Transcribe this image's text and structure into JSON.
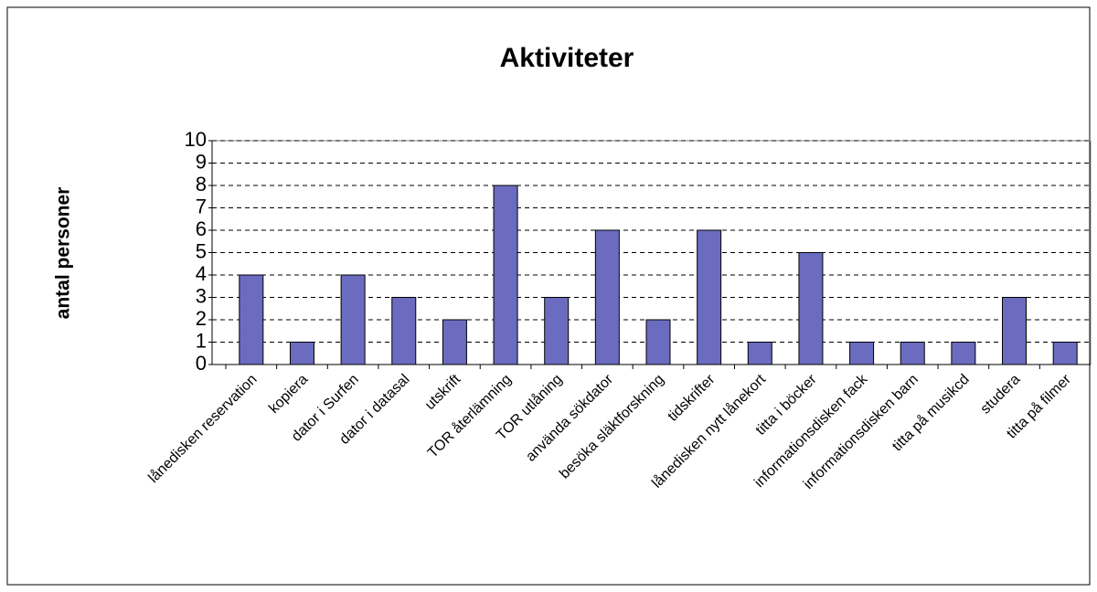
{
  "chart_data": {
    "type": "bar",
    "title": "Aktiviteter",
    "y_label": "antal personer",
    "categories": [
      "lånedisken reservation",
      "kopiera",
      "dator i Surfen",
      "dator i datasal",
      "utskrift",
      "TOR återlämning",
      "TOR utlåning",
      "använda sökdator",
      "besöka släktforskning",
      "tidskrifter",
      "lånedisken nytt lånekort",
      "titta i böcker",
      "informationsdisken fack",
      "informationsdisken barn",
      "titta på musikcd",
      "studera",
      "titta på filmer"
    ],
    "values": [
      4,
      1,
      4,
      3,
      2,
      8,
      3,
      6,
      2,
      6,
      1,
      5,
      1,
      1,
      1,
      3,
      1
    ],
    "color": "#6b6bc0",
    "ylim": [
      0,
      10
    ],
    "yticks": [
      0,
      1,
      2,
      3,
      4,
      5,
      6,
      7,
      8,
      9,
      10
    ],
    "grid": true
  }
}
